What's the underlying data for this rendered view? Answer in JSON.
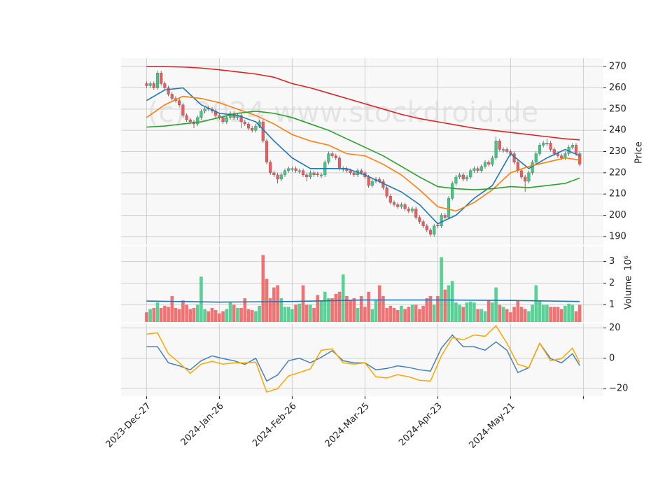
{
  "chart_data": [
    {
      "type": "candlestick",
      "ylabel": "Price",
      "watermark": "(c) 2024 www.stockdroid.de",
      "up_color": "#3dc985",
      "down_color": "#f05a5a",
      "ylim": [
        186,
        274
      ],
      "yticks": [
        190,
        200,
        210,
        220,
        230,
        240,
        250,
        260,
        270
      ],
      "grid": true,
      "open": [
        262,
        261,
        262,
        260,
        267,
        262,
        260,
        257,
        255,
        254,
        252,
        247,
        245,
        244,
        243,
        246,
        249,
        250.5,
        250,
        249,
        247,
        246,
        244,
        246,
        248,
        246,
        247,
        244,
        243,
        241,
        240,
        242,
        244,
        235,
        225,
        220,
        219,
        217,
        219,
        221,
        221.5,
        222,
        220.5,
        221,
        219,
        218,
        220,
        219.5,
        218.5,
        219,
        225,
        229,
        228,
        227,
        221.5,
        222,
        221,
        220,
        219,
        221,
        220,
        218,
        214,
        216,
        217,
        216,
        213,
        209,
        206,
        205,
        204,
        205,
        203,
        202,
        203,
        199,
        197,
        195,
        193,
        191,
        195.5,
        195,
        200,
        199,
        208,
        215,
        218,
        219,
        217,
        218,
        221,
        222,
        221,
        223,
        225,
        224,
        227,
        235,
        230.5,
        231,
        230,
        229,
        225,
        221,
        218,
        216,
        220,
        225,
        229,
        233,
        233.5,
        234,
        231,
        229,
        228,
        227,
        229,
        232,
        233,
        229
      ],
      "high": [
        263,
        263,
        263,
        268,
        268,
        263,
        261,
        258,
        256,
        255,
        253,
        248,
        246,
        245,
        247,
        250,
        251,
        251.5,
        251,
        250,
        248,
        247,
        247,
        249,
        249,
        248,
        248,
        245,
        244,
        242,
        243,
        245,
        245,
        236,
        226,
        221,
        220,
        220,
        222,
        223,
        223,
        223,
        222,
        222,
        220,
        221,
        221,
        220.5,
        220,
        226,
        230,
        230,
        229,
        228,
        223,
        223,
        222,
        221,
        222,
        222,
        221,
        219,
        217,
        218,
        218,
        217,
        214,
        210,
        207,
        206,
        206,
        206,
        204,
        204,
        204,
        200,
        198,
        196,
        194,
        196,
        196.5,
        201,
        201,
        209,
        216,
        219,
        220,
        220,
        219,
        222,
        223,
        223,
        224,
        226,
        226,
        228,
        237,
        236,
        232,
        232,
        231,
        230,
        226,
        222,
        219,
        221,
        226,
        230,
        234,
        235,
        236,
        235,
        232,
        230,
        229,
        230,
        233,
        234,
        234,
        230
      ],
      "low": [
        260,
        260,
        259,
        259,
        261,
        259,
        256,
        254,
        253,
        251,
        246,
        244,
        243,
        241,
        242,
        245,
        248,
        249,
        248,
        246,
        245,
        243,
        243,
        245,
        245,
        245,
        241,
        242,
        240,
        239,
        239,
        241,
        234,
        224,
        219,
        218,
        215,
        216,
        218,
        220,
        220.5,
        220,
        219.5,
        218,
        216,
        217,
        218,
        218,
        217.5,
        218,
        224,
        227,
        226,
        221,
        220.5,
        220,
        219,
        218,
        218,
        219,
        217,
        213,
        213,
        215,
        215,
        212,
        208,
        205,
        204,
        203,
        203,
        202,
        201,
        201,
        198,
        196,
        194,
        192,
        190,
        190,
        194,
        194,
        198,
        198,
        207,
        214,
        217,
        216,
        216,
        217,
        220,
        220,
        220,
        222,
        223,
        223,
        226,
        230,
        229.5,
        229,
        228,
        224,
        220,
        217,
        211,
        215,
        219,
        224,
        228,
        232,
        232.5,
        230,
        228,
        227,
        226,
        226,
        228,
        231,
        228,
        223
      ],
      "close": [
        261,
        262,
        260,
        267,
        262,
        260,
        257,
        255,
        254,
        252,
        247,
        245,
        244,
        243,
        246,
        249,
        250,
        250,
        249,
        247,
        246,
        244,
        246,
        248,
        246,
        247,
        244,
        243,
        241,
        240,
        242,
        244,
        235,
        225,
        220,
        219,
        217,
        219,
        221,
        222,
        222,
        221,
        221,
        219,
        218,
        220,
        219,
        219,
        219,
        225,
        229,
        228,
        227,
        222,
        222,
        221,
        220,
        219,
        221,
        220,
        218,
        214,
        216,
        217,
        216,
        213,
        209,
        206,
        205,
        204,
        205,
        203,
        202,
        203,
        199,
        197,
        195,
        193,
        191,
        195,
        195,
        200,
        199,
        208,
        215,
        218,
        219,
        217,
        218,
        221,
        222,
        221,
        223,
        225,
        224,
        227,
        235,
        231,
        231,
        230,
        229,
        225,
        221,
        218,
        216,
        220,
        225,
        229,
        233,
        234,
        234,
        231,
        229,
        228,
        227,
        229,
        232,
        233,
        229,
        224
      ],
      "lines": {
        "x": [
          0,
          5,
          10,
          15,
          20,
          25,
          30,
          35,
          40,
          45,
          50,
          55,
          60,
          65,
          70,
          75,
          80,
          85,
          90,
          95,
          100,
          105,
          110,
          115,
          119
        ],
        "series": [
          {
            "color": "#1f77b4",
            "values": [
              254,
              259,
              260,
              252,
              248,
              247,
              244,
              235,
              227,
              222,
              222,
              222,
              219,
              215,
              211,
              205,
              196,
              200,
              208,
              214,
              229,
              222,
              227,
              231,
              228
            ]
          },
          {
            "color": "#ff7f0e",
            "values": [
              246,
              252,
              256,
              255,
              253,
              250,
              247,
              243,
              238,
              235,
              233,
              229,
              228,
              224,
              219,
              212,
              204,
              202,
              206,
              212,
              220,
              223,
              225,
              227,
              226
            ]
          },
          {
            "color": "#2ca02c",
            "values": [
              241.5,
              242,
              243,
              244,
              246,
              248,
              249,
              248,
              246,
              243,
              240,
              236,
              232,
              228,
              223,
              218,
              213.5,
              212.5,
              212,
              212.5,
              213.5,
              213,
              214,
              215,
              217.5
            ]
          },
          {
            "color": "#d62728",
            "values": [
              270,
              270,
              269.8,
              269.3,
              268.5,
              267.5,
              266.5,
              265,
              262,
              260,
              257.5,
              255,
              252.5,
              250,
              247.5,
              245.5,
              244,
              242.5,
              241,
              240,
              239,
              238,
              237,
              236,
              235.5
            ]
          }
        ]
      }
    },
    {
      "type": "bar",
      "ylabel": "Volume",
      "scale_label": "10⁶",
      "ylim": [
        0.2,
        3.7
      ],
      "yticks": [
        1,
        2,
        3
      ],
      "grid": true,
      "values": [
        0.65,
        0.8,
        0.85,
        1.1,
        0.85,
        0.95,
        0.9,
        1.4,
        0.85,
        0.8,
        1.2,
        1.0,
        0.8,
        0.85,
        1.0,
        2.3,
        0.8,
        0.7,
        0.85,
        0.75,
        0.6,
        0.7,
        0.8,
        1.1,
        1.0,
        0.85,
        0.85,
        1.3,
        0.8,
        0.75,
        0.7,
        0.95,
        3.3,
        2.2,
        1.3,
        1.8,
        1.9,
        1.3,
        0.9,
        0.9,
        0.8,
        1.0,
        1.05,
        1.9,
        1.0,
        1.0,
        0.85,
        1.45,
        1.2,
        1.6,
        1.3,
        1.3,
        1.5,
        1.6,
        2.4,
        1.4,
        1.2,
        1.3,
        0.85,
        1.4,
        0.9,
        1.6,
        0.8,
        1.2,
        1.9,
        1.4,
        0.85,
        0.95,
        0.85,
        0.75,
        0.95,
        0.8,
        0.9,
        1.0,
        1.0,
        0.8,
        0.95,
        1.3,
        1.4,
        1.0,
        1.4,
        3.2,
        1.7,
        1.9,
        2.1,
        1.1,
        1.0,
        0.9,
        1.1,
        1.15,
        1.1,
        0.8,
        0.8,
        0.7,
        1.2,
        1.1,
        1.8,
        1.0,
        0.9,
        0.8,
        0.65,
        0.9,
        1.2,
        0.9,
        0.8,
        0.7,
        1.0,
        1.9,
        1.2,
        1.0,
        1.0,
        0.9,
        0.9,
        0.9,
        0.8,
        0.95,
        1.05,
        1.0,
        0.7,
        1.0
      ],
      "line": {
        "color": "#1f77b4",
        "x": [
          0,
          20,
          40,
          60,
          80,
          100,
          119
        ],
        "values": [
          1.17,
          1.12,
          1.15,
          1.22,
          1.22,
          1.2,
          1.15
        ]
      }
    },
    {
      "type": "line",
      "ylim": [
        -25,
        23
      ],
      "yticks": [
        {
          "value": -20,
          "label": "−20"
        },
        0,
        20
      ],
      "grid": true,
      "xlim": [
        -7,
        125.5
      ],
      "xticks": [
        {
          "value": 0,
          "label": "2023-Dec-27"
        },
        {
          "value": 20,
          "label": "2024-Jan-26"
        },
        {
          "value": 40,
          "label": "2024-Feb-26"
        },
        {
          "value": 60,
          "label": "2024-Mar-25"
        },
        {
          "value": 80,
          "label": "2024-Apr-23"
        },
        {
          "value": 100,
          "label": "2024-May-21"
        },
        {
          "value": 120,
          "label": null
        }
      ],
      "x": [
        0,
        3,
        6,
        9,
        12,
        15,
        18,
        21,
        24,
        27,
        30,
        33,
        36,
        39,
        42,
        45,
        48,
        51,
        54,
        57,
        60,
        63,
        66,
        69,
        72,
        75,
        78,
        81,
        84,
        87,
        90,
        93,
        96,
        99,
        102,
        105,
        108,
        111,
        114,
        117,
        119
      ],
      "series": [
        {
          "color": "#4682b4",
          "values": [
            7.6,
            7.6,
            -3,
            -5,
            -7.6,
            -1.6,
            1.6,
            -0.2,
            -1.6,
            -4,
            0,
            -15,
            -11,
            -1.6,
            0,
            -3,
            0.7,
            5,
            -1.6,
            -3,
            -3,
            -7.6,
            -6.7,
            -5,
            -6,
            -7.6,
            -8.5,
            6.7,
            15.4,
            7.6,
            7.6,
            5.3,
            10.8,
            5.3,
            -9.4,
            -6.2,
            9.9,
            -0.2,
            -3,
            3,
            -4.8
          ]
        },
        {
          "color": "#ffa500",
          "values": [
            15.9,
            16.8,
            3,
            -3,
            -9.9,
            -3.9,
            -2,
            -3.9,
            -3,
            -3,
            -2.5,
            -22.3,
            -20,
            -11.7,
            -9.4,
            -7,
            5.3,
            6.2,
            -3,
            -3.9,
            -3,
            -12.2,
            -13,
            -10.8,
            -12.2,
            -14.5,
            -15,
            1.6,
            13.6,
            12.2,
            15.4,
            14.5,
            21.4,
            9.9,
            -3.9,
            -6.2,
            9.9,
            -1.6,
            -0.2,
            6.7,
            -3
          ]
        }
      ]
    }
  ]
}
